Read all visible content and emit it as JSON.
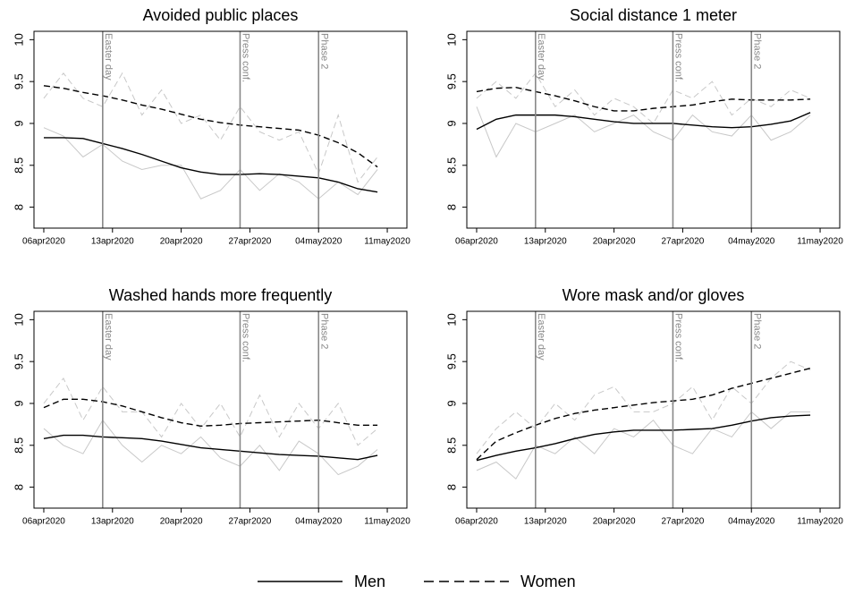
{
  "chart_data": [
    {
      "type": "line",
      "title": "Avoided public places",
      "x": [
        "2020-04-06",
        "2020-04-08",
        "2020-04-10",
        "2020-04-12",
        "2020-04-14",
        "2020-04-16",
        "2020-04-18",
        "2020-04-20",
        "2020-04-22",
        "2020-04-24",
        "2020-04-26",
        "2020-04-28",
        "2020-04-30",
        "2020-05-02",
        "2020-05-04",
        "2020-05-06",
        "2020-05-08",
        "2020-05-10"
      ],
      "xlim": [
        "2020-04-05",
        "2020-05-13"
      ],
      "xticks": [
        {
          "value": "2020-04-06",
          "label": "06apr2020"
        },
        {
          "value": "2020-04-13",
          "label": "13apr2020"
        },
        {
          "value": "2020-04-20",
          "label": "20apr2020"
        },
        {
          "value": "2020-04-27",
          "label": "27apr2020"
        },
        {
          "value": "2020-05-04",
          "label": "04may2020"
        },
        {
          "value": "2020-05-11",
          "label": "11may2020"
        }
      ],
      "ylim": [
        7.75,
        10.1
      ],
      "yticks": [
        8,
        8.5,
        9,
        9.5,
        10
      ],
      "annotations": [
        {
          "x": "2020-04-12",
          "label": "Easter day"
        },
        {
          "x": "2020-04-26",
          "label": "Press conf."
        },
        {
          "x": "2020-05-04",
          "label": "Phase 2"
        }
      ],
      "series": [
        {
          "color": "#c8c8c8",
          "line_style": "solid",
          "values": [
            8.95,
            8.85,
            8.6,
            8.75,
            8.55,
            8.45,
            8.5,
            8.5,
            8.1,
            8.2,
            8.45,
            8.2,
            8.4,
            8.3,
            8.1,
            8.3,
            8.15,
            8.45
          ]
        },
        {
          "color": "#c8c8c8",
          "line_style": "dashed",
          "values": [
            9.3,
            9.6,
            9.3,
            9.2,
            9.6,
            9.1,
            9.4,
            9.0,
            9.1,
            8.8,
            9.2,
            8.9,
            8.8,
            8.9,
            8.4,
            9.1,
            8.3,
            8.6
          ]
        },
        {
          "name": "Men",
          "color": "#000000",
          "line_style": "solid",
          "values": [
            8.83,
            8.83,
            8.82,
            8.76,
            8.7,
            8.63,
            8.55,
            8.47,
            8.42,
            8.39,
            8.39,
            8.4,
            8.39,
            8.37,
            8.35,
            8.3,
            8.22,
            8.18
          ]
        },
        {
          "name": "Women",
          "color": "#000000",
          "line_style": "dashed",
          "values": [
            9.45,
            9.42,
            9.37,
            9.33,
            9.28,
            9.22,
            9.17,
            9.11,
            9.05,
            9.01,
            8.98,
            8.96,
            8.94,
            8.92,
            8.86,
            8.77,
            8.65,
            8.48
          ]
        }
      ]
    },
    {
      "type": "line",
      "title": "Social distance 1 meter",
      "x": [
        "2020-04-06",
        "2020-04-08",
        "2020-04-10",
        "2020-04-12",
        "2020-04-14",
        "2020-04-16",
        "2020-04-18",
        "2020-04-20",
        "2020-04-22",
        "2020-04-24",
        "2020-04-26",
        "2020-04-28",
        "2020-04-30",
        "2020-05-02",
        "2020-05-04",
        "2020-05-06",
        "2020-05-08",
        "2020-05-10"
      ],
      "xlim": [
        "2020-04-05",
        "2020-05-13"
      ],
      "xticks": [
        {
          "value": "2020-04-06",
          "label": "06apr2020"
        },
        {
          "value": "2020-04-13",
          "label": "13apr2020"
        },
        {
          "value": "2020-04-20",
          "label": "20apr2020"
        },
        {
          "value": "2020-04-27",
          "label": "27apr2020"
        },
        {
          "value": "2020-05-04",
          "label": "04may2020"
        },
        {
          "value": "2020-05-11",
          "label": "11may2020"
        }
      ],
      "ylim": [
        7.75,
        10.1
      ],
      "yticks": [
        8,
        8.5,
        9,
        9.5,
        10
      ],
      "annotations": [
        {
          "x": "2020-04-12",
          "label": "Easter day"
        },
        {
          "x": "2020-04-26",
          "label": "Press conf."
        },
        {
          "x": "2020-05-04",
          "label": "Phase 2"
        }
      ],
      "series": [
        {
          "color": "#c8c8c8",
          "line_style": "solid",
          "values": [
            9.2,
            8.6,
            9.0,
            8.9,
            9.0,
            9.1,
            8.9,
            9.0,
            9.1,
            8.9,
            8.8,
            9.1,
            8.9,
            8.85,
            9.1,
            8.8,
            8.9,
            9.1
          ]
        },
        {
          "color": "#c8c8c8",
          "line_style": "dashed",
          "values": [
            9.3,
            9.5,
            9.3,
            9.6,
            9.2,
            9.4,
            9.1,
            9.3,
            9.2,
            9.0,
            9.4,
            9.3,
            9.5,
            9.1,
            9.3,
            9.2,
            9.4,
            9.3
          ]
        },
        {
          "name": "Men",
          "color": "#000000",
          "line_style": "solid",
          "values": [
            8.93,
            9.05,
            9.1,
            9.1,
            9.1,
            9.08,
            9.05,
            9.02,
            9.0,
            9.0,
            9.0,
            8.98,
            8.96,
            8.95,
            8.96,
            8.99,
            9.03,
            9.13
          ]
        },
        {
          "name": "Women",
          "color": "#000000",
          "line_style": "dashed",
          "values": [
            9.38,
            9.42,
            9.43,
            9.38,
            9.33,
            9.27,
            9.2,
            9.15,
            9.15,
            9.18,
            9.2,
            9.22,
            9.26,
            9.29,
            9.28,
            9.28,
            9.28,
            9.29
          ]
        }
      ]
    },
    {
      "type": "line",
      "title": "Washed hands more frequently",
      "x": [
        "2020-04-06",
        "2020-04-08",
        "2020-04-10",
        "2020-04-12",
        "2020-04-14",
        "2020-04-16",
        "2020-04-18",
        "2020-04-20",
        "2020-04-22",
        "2020-04-24",
        "2020-04-26",
        "2020-04-28",
        "2020-04-30",
        "2020-05-02",
        "2020-05-04",
        "2020-05-06",
        "2020-05-08",
        "2020-05-10"
      ],
      "xlim": [
        "2020-04-05",
        "2020-05-13"
      ],
      "xticks": [
        {
          "value": "2020-04-06",
          "label": "06apr2020"
        },
        {
          "value": "2020-04-13",
          "label": "13apr2020"
        },
        {
          "value": "2020-04-20",
          "label": "20apr2020"
        },
        {
          "value": "2020-04-27",
          "label": "27apr2020"
        },
        {
          "value": "2020-05-04",
          "label": "04may2020"
        },
        {
          "value": "2020-05-11",
          "label": "11may2020"
        }
      ],
      "ylim": [
        7.75,
        10.1
      ],
      "yticks": [
        8,
        8.5,
        9,
        9.5,
        10
      ],
      "annotations": [
        {
          "x": "2020-04-12",
          "label": "Easter day"
        },
        {
          "x": "2020-04-26",
          "label": "Press conf."
        },
        {
          "x": "2020-05-04",
          "label": "Phase 2"
        }
      ],
      "series": [
        {
          "color": "#c8c8c8",
          "line_style": "solid",
          "values": [
            8.7,
            8.5,
            8.4,
            8.8,
            8.5,
            8.3,
            8.5,
            8.4,
            8.6,
            8.35,
            8.25,
            8.5,
            8.2,
            8.55,
            8.4,
            8.15,
            8.25,
            8.45
          ]
        },
        {
          "color": "#c8c8c8",
          "line_style": "dashed",
          "values": [
            9.0,
            9.3,
            8.8,
            9.2,
            8.9,
            8.9,
            8.6,
            9.0,
            8.7,
            9.0,
            8.6,
            9.1,
            8.6,
            9.0,
            8.7,
            9.0,
            8.5,
            8.7
          ]
        },
        {
          "name": "Men",
          "color": "#000000",
          "line_style": "solid",
          "values": [
            8.58,
            8.62,
            8.62,
            8.6,
            8.59,
            8.58,
            8.55,
            8.51,
            8.47,
            8.45,
            8.43,
            8.41,
            8.39,
            8.38,
            8.37,
            8.35,
            8.33,
            8.38
          ]
        },
        {
          "name": "Women",
          "color": "#000000",
          "line_style": "dashed",
          "values": [
            8.95,
            9.05,
            9.05,
            9.02,
            8.97,
            8.9,
            8.83,
            8.77,
            8.73,
            8.74,
            8.76,
            8.77,
            8.78,
            8.79,
            8.8,
            8.77,
            8.74,
            8.74
          ]
        }
      ]
    },
    {
      "type": "line",
      "title": "Wore mask and/or gloves",
      "x": [
        "2020-04-06",
        "2020-04-08",
        "2020-04-10",
        "2020-04-12",
        "2020-04-14",
        "2020-04-16",
        "2020-04-18",
        "2020-04-20",
        "2020-04-22",
        "2020-04-24",
        "2020-04-26",
        "2020-04-28",
        "2020-04-30",
        "2020-05-02",
        "2020-05-04",
        "2020-05-06",
        "2020-05-08",
        "2020-05-10"
      ],
      "xlim": [
        "2020-04-05",
        "2020-05-13"
      ],
      "xticks": [
        {
          "value": "2020-04-06",
          "label": "06apr2020"
        },
        {
          "value": "2020-04-13",
          "label": "13apr2020"
        },
        {
          "value": "2020-04-20",
          "label": "20apr2020"
        },
        {
          "value": "2020-04-27",
          "label": "27apr2020"
        },
        {
          "value": "2020-05-04",
          "label": "04may2020"
        },
        {
          "value": "2020-05-11",
          "label": "11may2020"
        }
      ],
      "ylim": [
        7.75,
        10.1
      ],
      "yticks": [
        8,
        8.5,
        9,
        9.5,
        10
      ],
      "annotations": [
        {
          "x": "2020-04-12",
          "label": "Easter day"
        },
        {
          "x": "2020-04-26",
          "label": "Press conf."
        },
        {
          "x": "2020-05-04",
          "label": "Phase 2"
        }
      ],
      "series": [
        {
          "color": "#c8c8c8",
          "line_style": "solid",
          "values": [
            8.2,
            8.3,
            8.1,
            8.5,
            8.4,
            8.6,
            8.4,
            8.7,
            8.6,
            8.8,
            8.5,
            8.4,
            8.7,
            8.6,
            8.9,
            8.7,
            8.9,
            8.9
          ]
        },
        {
          "color": "#c8c8c8",
          "line_style": "dashed",
          "values": [
            8.4,
            8.7,
            8.9,
            8.7,
            9.0,
            8.8,
            9.1,
            9.2,
            8.9,
            8.9,
            9.0,
            9.2,
            8.8,
            9.2,
            9.0,
            9.3,
            9.5,
            9.4
          ]
        },
        {
          "name": "Men",
          "color": "#000000",
          "line_style": "solid",
          "values": [
            8.32,
            8.38,
            8.43,
            8.47,
            8.52,
            8.58,
            8.63,
            8.66,
            8.68,
            8.68,
            8.68,
            8.69,
            8.7,
            8.74,
            8.79,
            8.83,
            8.85,
            8.86
          ]
        },
        {
          "name": "Women",
          "color": "#000000",
          "line_style": "dashed",
          "values": [
            8.33,
            8.55,
            8.65,
            8.74,
            8.82,
            8.88,
            8.92,
            8.95,
            8.98,
            9.01,
            9.03,
            9.05,
            9.1,
            9.18,
            9.24,
            9.3,
            9.36,
            9.42
          ]
        }
      ]
    }
  ]
}
